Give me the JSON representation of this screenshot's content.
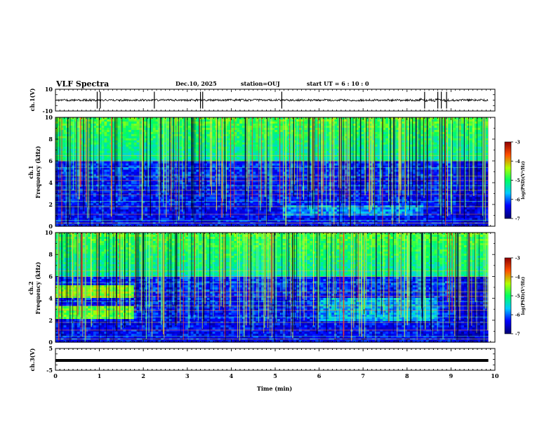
{
  "header": {
    "title": "VLF Spectra",
    "date": "Dec.10, 2025",
    "station": "station=OUJ",
    "start": "start  UT =   6 : 10 : 0"
  },
  "chart_data": {
    "type": "heatmap",
    "title": "VLF Spectra",
    "xlabel": "Time (min)",
    "xlim": [
      0,
      10
    ],
    "x_ticks": [
      "0",
      "1",
      "2",
      "3",
      "4",
      "5",
      "6",
      "7",
      "8",
      "9",
      "10"
    ],
    "data_end_min": 9.85,
    "panels": [
      {
        "name": "ch1-waveform",
        "type": "line",
        "ylabel": "ch.1(V)",
        "ylim": [
          -10,
          10
        ],
        "y_ticks": [
          "10",
          "-10"
        ],
        "baseline_v": 0,
        "spikes_min": [
          0.95,
          1.02,
          2.25,
          3.3,
          3.35,
          5.15,
          8.4,
          8.7,
          8.78,
          8.9
        ]
      },
      {
        "name": "ch1-spectrogram",
        "type": "heatmap",
        "ylabel": "ch.1\nFrequency (kHz)",
        "ylim": [
          0,
          10
        ],
        "y_ticks": [
          "0",
          "2",
          "4",
          "6",
          "8",
          "10"
        ],
        "colorbar": {
          "label": "log(PSD)(V²/Hz)",
          "range": [
            -7,
            -3
          ],
          "ticks": [
            "-3",
            "-4",
            "-5",
            "-6",
            "-7"
          ]
        }
      },
      {
        "name": "ch2-spectrogram",
        "type": "heatmap",
        "ylabel": "ch.2\nFrequency (kHz)",
        "ylim": [
          0,
          10
        ],
        "y_ticks": [
          "0",
          "2",
          "4",
          "6",
          "8",
          "10"
        ],
        "colorbar": {
          "label": "log(PSD)(V²/Hz)",
          "range": [
            -7,
            -3
          ],
          "ticks": [
            "-3",
            "-4",
            "-5",
            "-6",
            "-7"
          ]
        }
      },
      {
        "name": "ch3-waveform",
        "type": "line",
        "ylabel": "ch.3(V)",
        "ylim": [
          -5,
          5
        ],
        "y_ticks": [
          "5",
          "-5"
        ],
        "baseline_v": -0.5
      }
    ]
  }
}
